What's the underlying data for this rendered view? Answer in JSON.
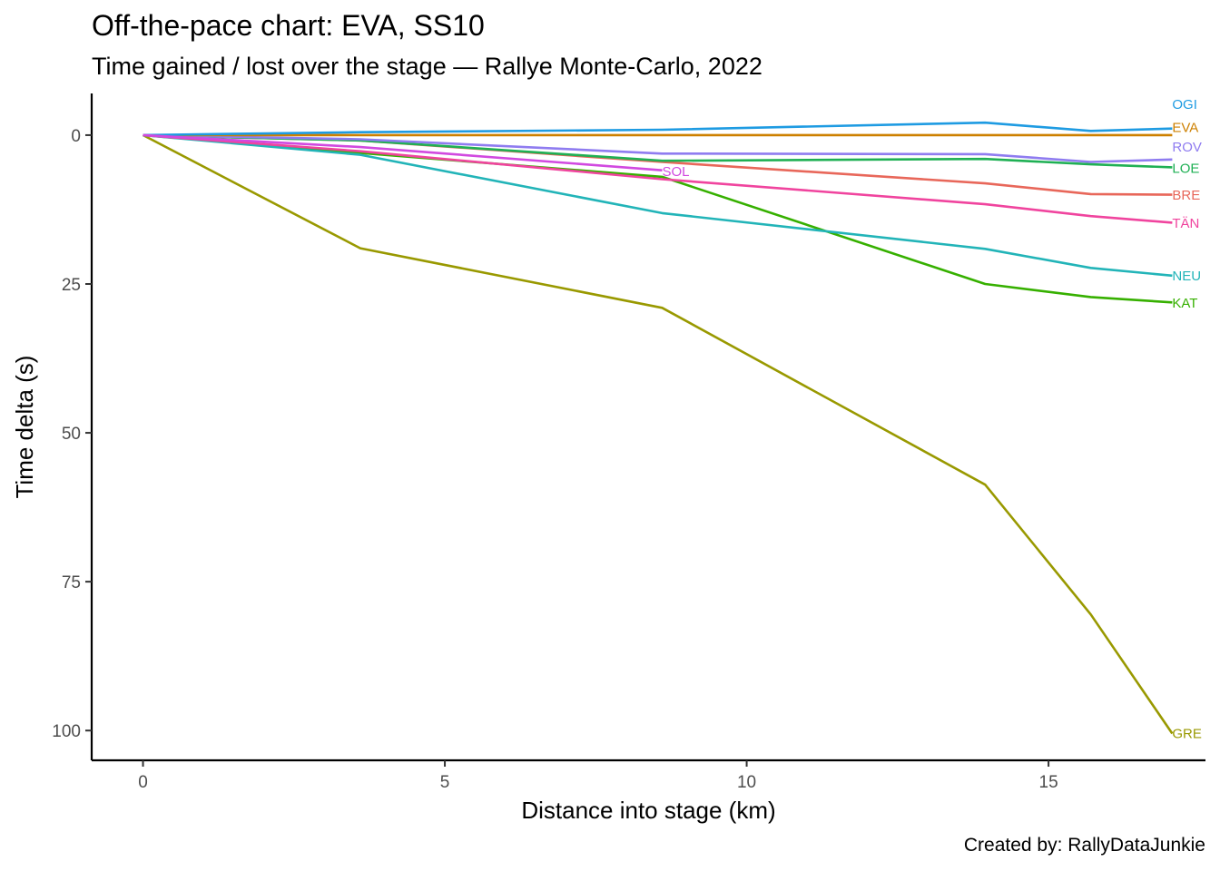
{
  "title": "Off-the-pace chart: EVA, SS10",
  "subtitle": "Time gained / lost over the stage — Rallye Monte-Carlo, 2022",
  "caption": "Created by: RallyDataJunkie",
  "chart_data": {
    "type": "line",
    "xlabel": "Distance into stage (km)",
    "ylabel": "Time delta (s)",
    "xlim": [
      -0.85,
      17.6
    ],
    "ylim": [
      -7,
      105
    ],
    "y_reversed": true,
    "x_ticks": [
      0,
      5,
      10,
      15
    ],
    "y_ticks": [
      0,
      25,
      50,
      75,
      100
    ],
    "x_tick_labels": [
      "0",
      "5",
      "10",
      "15"
    ],
    "y_tick_labels": [
      "0",
      "25",
      "50",
      "75",
      "100"
    ],
    "grid": false,
    "legend": "none (series labelled at line ends)",
    "x": [
      0,
      3.6,
      8.6,
      13.95,
      15.7,
      17.05
    ],
    "series": [
      {
        "name": "GRE",
        "color": "#999900",
        "values": [
          0,
          19.0,
          29.0,
          58.7,
          80.5,
          100.5
        ]
      },
      {
        "name": "KAT",
        "color": "#36B000",
        "values": [
          0,
          3.0,
          7.0,
          25.0,
          27.2,
          28.1
        ]
      },
      {
        "name": "NEU",
        "color": "#22B4B8",
        "values": [
          0,
          3.3,
          13.1,
          19.1,
          22.3,
          23.6
        ]
      },
      {
        "name": "TÄN",
        "color": "#F0449E",
        "values": [
          0,
          2.7,
          7.4,
          11.6,
          13.6,
          14.7
        ]
      },
      {
        "name": "BRE",
        "color": "#E8675A",
        "values": [
          0,
          0.9,
          4.5,
          8.1,
          9.9,
          10.0
        ]
      },
      {
        "name": "LOE",
        "color": "#1FB054",
        "values": [
          0,
          0.9,
          4.3,
          4.0,
          4.9,
          5.4
        ]
      },
      {
        "name": "ROV",
        "color": "#8F7CF0",
        "values": [
          0,
          0.7,
          3.1,
          3.2,
          4.5,
          4.1
        ]
      },
      {
        "name": "EVA",
        "color": "#CD8000",
        "values": [
          0,
          0,
          0,
          0,
          0,
          0
        ]
      },
      {
        "name": "OGI",
        "color": "#1E9BE2",
        "values": [
          0,
          -0.5,
          -0.9,
          -2.1,
          -0.7,
          -1.1
        ]
      },
      {
        "name": "SOL",
        "color": "#D149E0",
        "x": [
          0,
          3.6,
          8.6
        ],
        "values": [
          0,
          2.0,
          5.9
        ]
      }
    ],
    "end_labels": [
      {
        "text": "OGI",
        "color": "#1E9BE2",
        "x": 17.05,
        "y": -5.2
      },
      {
        "text": "EVA",
        "color": "#CD8000",
        "x": 17.05,
        "y": -1.3
      },
      {
        "text": "ROV",
        "color": "#8F7CF0",
        "x": 17.05,
        "y": 2.0
      },
      {
        "text": "LOE",
        "color": "#1FB054",
        "x": 17.05,
        "y": 5.6
      },
      {
        "text": "BRE",
        "color": "#E8675A",
        "x": 17.05,
        "y": 10.1
      },
      {
        "text": "TÄN",
        "color": "#F0449E",
        "x": 17.05,
        "y": 14.8
      },
      {
        "text": "NEU",
        "color": "#22B4B8",
        "x": 17.05,
        "y": 23.6
      },
      {
        "text": "KAT",
        "color": "#36B000",
        "x": 17.05,
        "y": 28.2
      },
      {
        "text": "GRE",
        "color": "#999900",
        "x": 17.05,
        "y": 100.5
      },
      {
        "text": "SOL",
        "color": "#D149E0",
        "x": 8.6,
        "y": 6.1
      }
    ]
  }
}
